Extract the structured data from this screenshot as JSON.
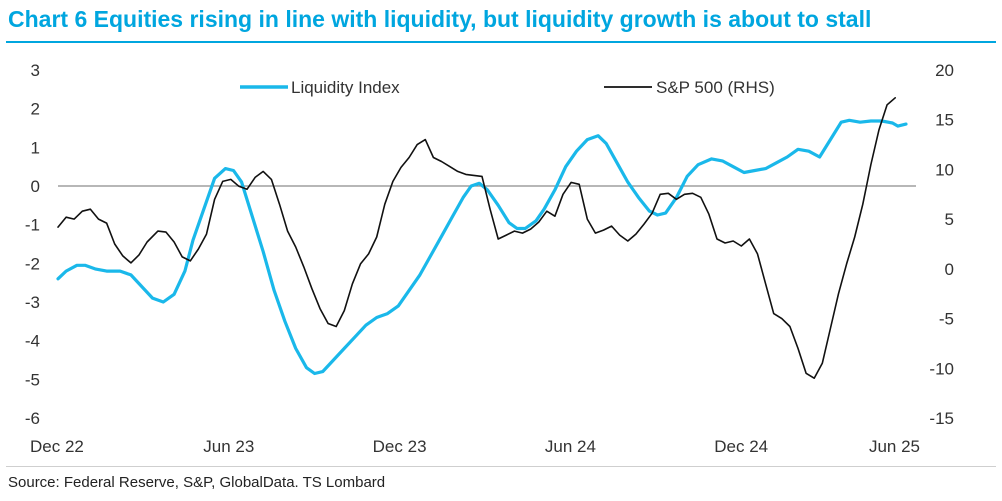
{
  "title": "Chart 6 Equities rising in line with liquidity, but liquidity growth is about to stall",
  "source": "Source: Federal Reserve, S&P, GlobalData. TS Lombard",
  "colors": {
    "title": "#00a6df",
    "liquidity": "#1ab8ea",
    "sp500": "#111111",
    "zeroline": "#8c8c8c"
  },
  "chart_data": {
    "type": "line",
    "x_ticks": [
      "Dec 22",
      "Jun 23",
      "Dec 23",
      "Jun 24",
      "Dec 24",
      "Jun 25"
    ],
    "x_range": [
      0,
      30
    ],
    "y_left": {
      "min": -6,
      "max": 3,
      "ticks": [
        3,
        2,
        1,
        0,
        -1,
        -2,
        -3,
        -4,
        -5,
        -6
      ]
    },
    "y_right": {
      "min": -15,
      "max": 20,
      "ticks": [
        20,
        15,
        10,
        5,
        0,
        -5,
        -10,
        -15
      ]
    },
    "grid": false,
    "legend_position": "top",
    "series": [
      {
        "name": "Liquidity Index",
        "axis": "left",
        "points": [
          [
            0,
            -2.4
          ],
          [
            0.3,
            -2.2
          ],
          [
            0.7,
            -2.05
          ],
          [
            1.0,
            -2.05
          ],
          [
            1.4,
            -2.15
          ],
          [
            1.8,
            -2.2
          ],
          [
            2.3,
            -2.2
          ],
          [
            2.7,
            -2.3
          ],
          [
            3.1,
            -2.6
          ],
          [
            3.5,
            -2.9
          ],
          [
            3.9,
            -3.0
          ],
          [
            4.3,
            -2.8
          ],
          [
            4.7,
            -2.2
          ],
          [
            5.0,
            -1.4
          ],
          [
            5.4,
            -0.6
          ],
          [
            5.8,
            0.2
          ],
          [
            6.2,
            0.45
          ],
          [
            6.5,
            0.4
          ],
          [
            6.8,
            0.1
          ],
          [
            7.2,
            -0.8
          ],
          [
            7.6,
            -1.7
          ],
          [
            8.0,
            -2.7
          ],
          [
            8.4,
            -3.5
          ],
          [
            8.8,
            -4.2
          ],
          [
            9.2,
            -4.7
          ],
          [
            9.5,
            -4.85
          ],
          [
            9.8,
            -4.8
          ],
          [
            10.2,
            -4.5
          ],
          [
            10.6,
            -4.2
          ],
          [
            11.0,
            -3.9
          ],
          [
            11.4,
            -3.6
          ],
          [
            11.8,
            -3.4
          ],
          [
            12.2,
            -3.3
          ],
          [
            12.6,
            -3.1
          ],
          [
            13.0,
            -2.7
          ],
          [
            13.4,
            -2.3
          ],
          [
            13.8,
            -1.8
          ],
          [
            14.2,
            -1.3
          ],
          [
            14.6,
            -0.8
          ],
          [
            15.0,
            -0.3
          ],
          [
            15.3,
            0.0
          ],
          [
            15.6,
            0.07
          ],
          [
            15.9,
            -0.1
          ],
          [
            16.3,
            -0.5
          ],
          [
            16.7,
            -0.95
          ],
          [
            17.0,
            -1.1
          ],
          [
            17.3,
            -1.1
          ],
          [
            17.7,
            -0.9
          ],
          [
            18.0,
            -0.6
          ],
          [
            18.4,
            -0.1
          ],
          [
            18.8,
            0.5
          ],
          [
            19.2,
            0.9
          ],
          [
            19.6,
            1.2
          ],
          [
            20.0,
            1.3
          ],
          [
            20.3,
            1.1
          ],
          [
            20.7,
            0.6
          ],
          [
            21.1,
            0.1
          ],
          [
            21.5,
            -0.3
          ],
          [
            21.9,
            -0.65
          ],
          [
            22.2,
            -0.75
          ],
          [
            22.5,
            -0.7
          ],
          [
            22.9,
            -0.3
          ],
          [
            23.3,
            0.25
          ],
          [
            23.7,
            0.55
          ],
          [
            24.2,
            0.7
          ],
          [
            24.6,
            0.65
          ],
          [
            25.0,
            0.5
          ],
          [
            25.4,
            0.35
          ],
          [
            25.8,
            0.4
          ],
          [
            26.2,
            0.45
          ],
          [
            26.6,
            0.6
          ],
          [
            27.0,
            0.75
          ],
          [
            27.4,
            0.95
          ],
          [
            27.8,
            0.9
          ],
          [
            28.2,
            0.75
          ],
          [
            28.6,
            1.2
          ],
          [
            29.0,
            1.65
          ],
          [
            29.3,
            1.7
          ],
          [
            29.7,
            1.65
          ],
          [
            30.1,
            1.68
          ],
          [
            30.5,
            1.68
          ],
          [
            30.9,
            1.63
          ],
          [
            31.1,
            1.55
          ],
          [
            31.4,
            1.6
          ]
        ]
      },
      {
        "name": "S&P 500 (RHS)",
        "axis": "right",
        "points": [
          [
            0,
            4.2
          ],
          [
            0.3,
            5.2
          ],
          [
            0.6,
            5.0
          ],
          [
            0.9,
            5.8
          ],
          [
            1.2,
            6.0
          ],
          [
            1.5,
            5.0
          ],
          [
            1.8,
            4.6
          ],
          [
            2.1,
            2.5
          ],
          [
            2.4,
            1.3
          ],
          [
            2.7,
            0.6
          ],
          [
            3.0,
            1.4
          ],
          [
            3.3,
            2.7
          ],
          [
            3.7,
            3.8
          ],
          [
            4.0,
            3.7
          ],
          [
            4.3,
            2.7
          ],
          [
            4.6,
            1.2
          ],
          [
            4.9,
            0.8
          ],
          [
            5.2,
            2.0
          ],
          [
            5.5,
            3.5
          ],
          [
            5.8,
            7.0
          ],
          [
            6.1,
            8.8
          ],
          [
            6.4,
            9.0
          ],
          [
            6.7,
            8.3
          ],
          [
            7.0,
            8.0
          ],
          [
            7.3,
            9.2
          ],
          [
            7.6,
            9.8
          ],
          [
            7.9,
            9.0
          ],
          [
            8.2,
            6.5
          ],
          [
            8.5,
            3.8
          ],
          [
            8.8,
            2.2
          ],
          [
            9.1,
            0.2
          ],
          [
            9.4,
            -2.0
          ],
          [
            9.7,
            -4.0
          ],
          [
            10.0,
            -5.5
          ],
          [
            10.3,
            -5.8
          ],
          [
            10.6,
            -4.2
          ],
          [
            10.9,
            -1.5
          ],
          [
            11.2,
            0.5
          ],
          [
            11.5,
            1.5
          ],
          [
            11.8,
            3.2
          ],
          [
            12.1,
            6.5
          ],
          [
            12.4,
            8.8
          ],
          [
            12.7,
            10.2
          ],
          [
            13.0,
            11.2
          ],
          [
            13.3,
            12.5
          ],
          [
            13.6,
            13.0
          ],
          [
            13.9,
            11.2
          ],
          [
            14.2,
            10.8
          ],
          [
            14.5,
            10.3
          ],
          [
            14.8,
            9.8
          ],
          [
            15.1,
            9.5
          ],
          [
            15.4,
            9.4
          ],
          [
            15.7,
            9.3
          ],
          [
            16.0,
            6.0
          ],
          [
            16.3,
            3.0
          ],
          [
            16.6,
            3.4
          ],
          [
            16.9,
            3.8
          ],
          [
            17.2,
            3.6
          ],
          [
            17.5,
            4.0
          ],
          [
            17.8,
            4.7
          ],
          [
            18.1,
            5.8
          ],
          [
            18.4,
            5.3
          ],
          [
            18.7,
            7.5
          ],
          [
            19.0,
            8.7
          ],
          [
            19.3,
            8.5
          ],
          [
            19.6,
            5.0
          ],
          [
            19.9,
            3.6
          ],
          [
            20.2,
            3.9
          ],
          [
            20.5,
            4.3
          ],
          [
            20.8,
            3.4
          ],
          [
            21.1,
            2.8
          ],
          [
            21.4,
            3.5
          ],
          [
            21.7,
            4.5
          ],
          [
            22.0,
            5.6
          ],
          [
            22.3,
            7.5
          ],
          [
            22.6,
            7.6
          ],
          [
            22.9,
            7.0
          ],
          [
            23.2,
            7.5
          ],
          [
            23.5,
            7.6
          ],
          [
            23.8,
            7.2
          ],
          [
            24.1,
            5.5
          ],
          [
            24.4,
            3.0
          ],
          [
            24.7,
            2.6
          ],
          [
            25.0,
            2.8
          ],
          [
            25.3,
            2.3
          ],
          [
            25.6,
            3.0
          ],
          [
            25.9,
            1.5
          ],
          [
            26.2,
            -1.5
          ],
          [
            26.5,
            -4.5
          ],
          [
            26.8,
            -5.0
          ],
          [
            27.1,
            -5.8
          ],
          [
            27.4,
            -8.0
          ],
          [
            27.7,
            -10.5
          ],
          [
            28.0,
            -11.0
          ],
          [
            28.3,
            -9.5
          ],
          [
            28.6,
            -6.0
          ],
          [
            28.9,
            -2.5
          ],
          [
            29.2,
            0.5
          ],
          [
            29.5,
            3.2
          ],
          [
            29.8,
            6.5
          ],
          [
            30.1,
            10.5
          ],
          [
            30.4,
            14.0
          ],
          [
            30.7,
            16.5
          ],
          [
            31.0,
            17.2
          ]
        ]
      }
    ]
  }
}
